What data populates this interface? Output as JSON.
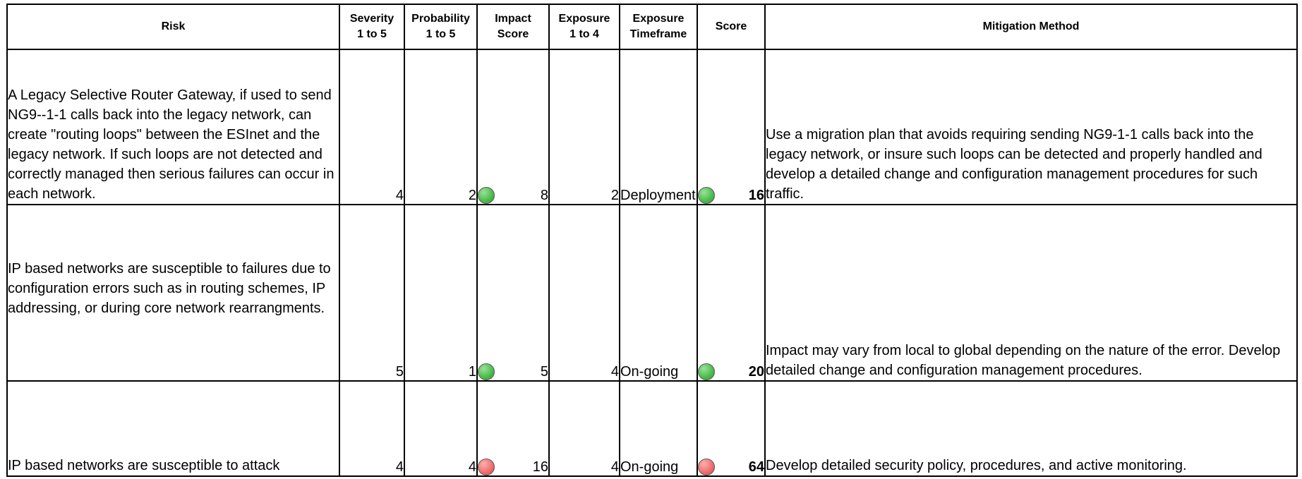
{
  "headers": {
    "risk": "Risk",
    "severity": [
      "Severity",
      "1 to 5"
    ],
    "probability": [
      "Probability",
      "1 to 5"
    ],
    "impact": [
      "Impact",
      "Score"
    ],
    "exposure": [
      "Exposure",
      "1 to 4"
    ],
    "timeframe": [
      "Exposure",
      "Timeframe"
    ],
    "score": "Score",
    "mitigation": "Mitigation Method"
  },
  "rows": [
    {
      "risk": "A Legacy Selective Router Gateway, if used to send NG9--1-1 calls back into the legacy network, can create \"routing loops\" between the ESInet and the legacy network.  If such loops are not detected and correctly managed then serious failures can occur in each network.",
      "severity": "4",
      "probability": "2",
      "impact_status": "green",
      "impact": "8",
      "exposure": "2",
      "timeframe": "Deployment",
      "score_status": "green",
      "score": "16",
      "mitigation": "Use a migration plan that avoids requiring sending NG9-1-1 calls back into the legacy network, or insure such loops can be detected and properly handled and develop a detailed change and configuration management procedures for such traffic."
    },
    {
      "risk": "IP based networks are susceptible to failures due to configuration errors such as in routing schemes, IP addressing, or during core network rearrangments.",
      "severity": "5",
      "probability": "1",
      "impact_status": "green",
      "impact": "5",
      "exposure": "4",
      "timeframe": "On-going",
      "score_status": "green",
      "score": "20",
      "mitigation": "Impact may vary from local to global depending on the nature of the error. Develop detailed change and configuration management procedures."
    },
    {
      "risk": "IP based networks are susceptible to attack",
      "severity": "4",
      "probability": "4",
      "impact_status": "red",
      "impact": "16",
      "exposure": "4",
      "timeframe": "On-going",
      "score_status": "red",
      "score": "64",
      "mitigation": "Develop detailed security policy, procedures, and active monitoring."
    }
  ]
}
